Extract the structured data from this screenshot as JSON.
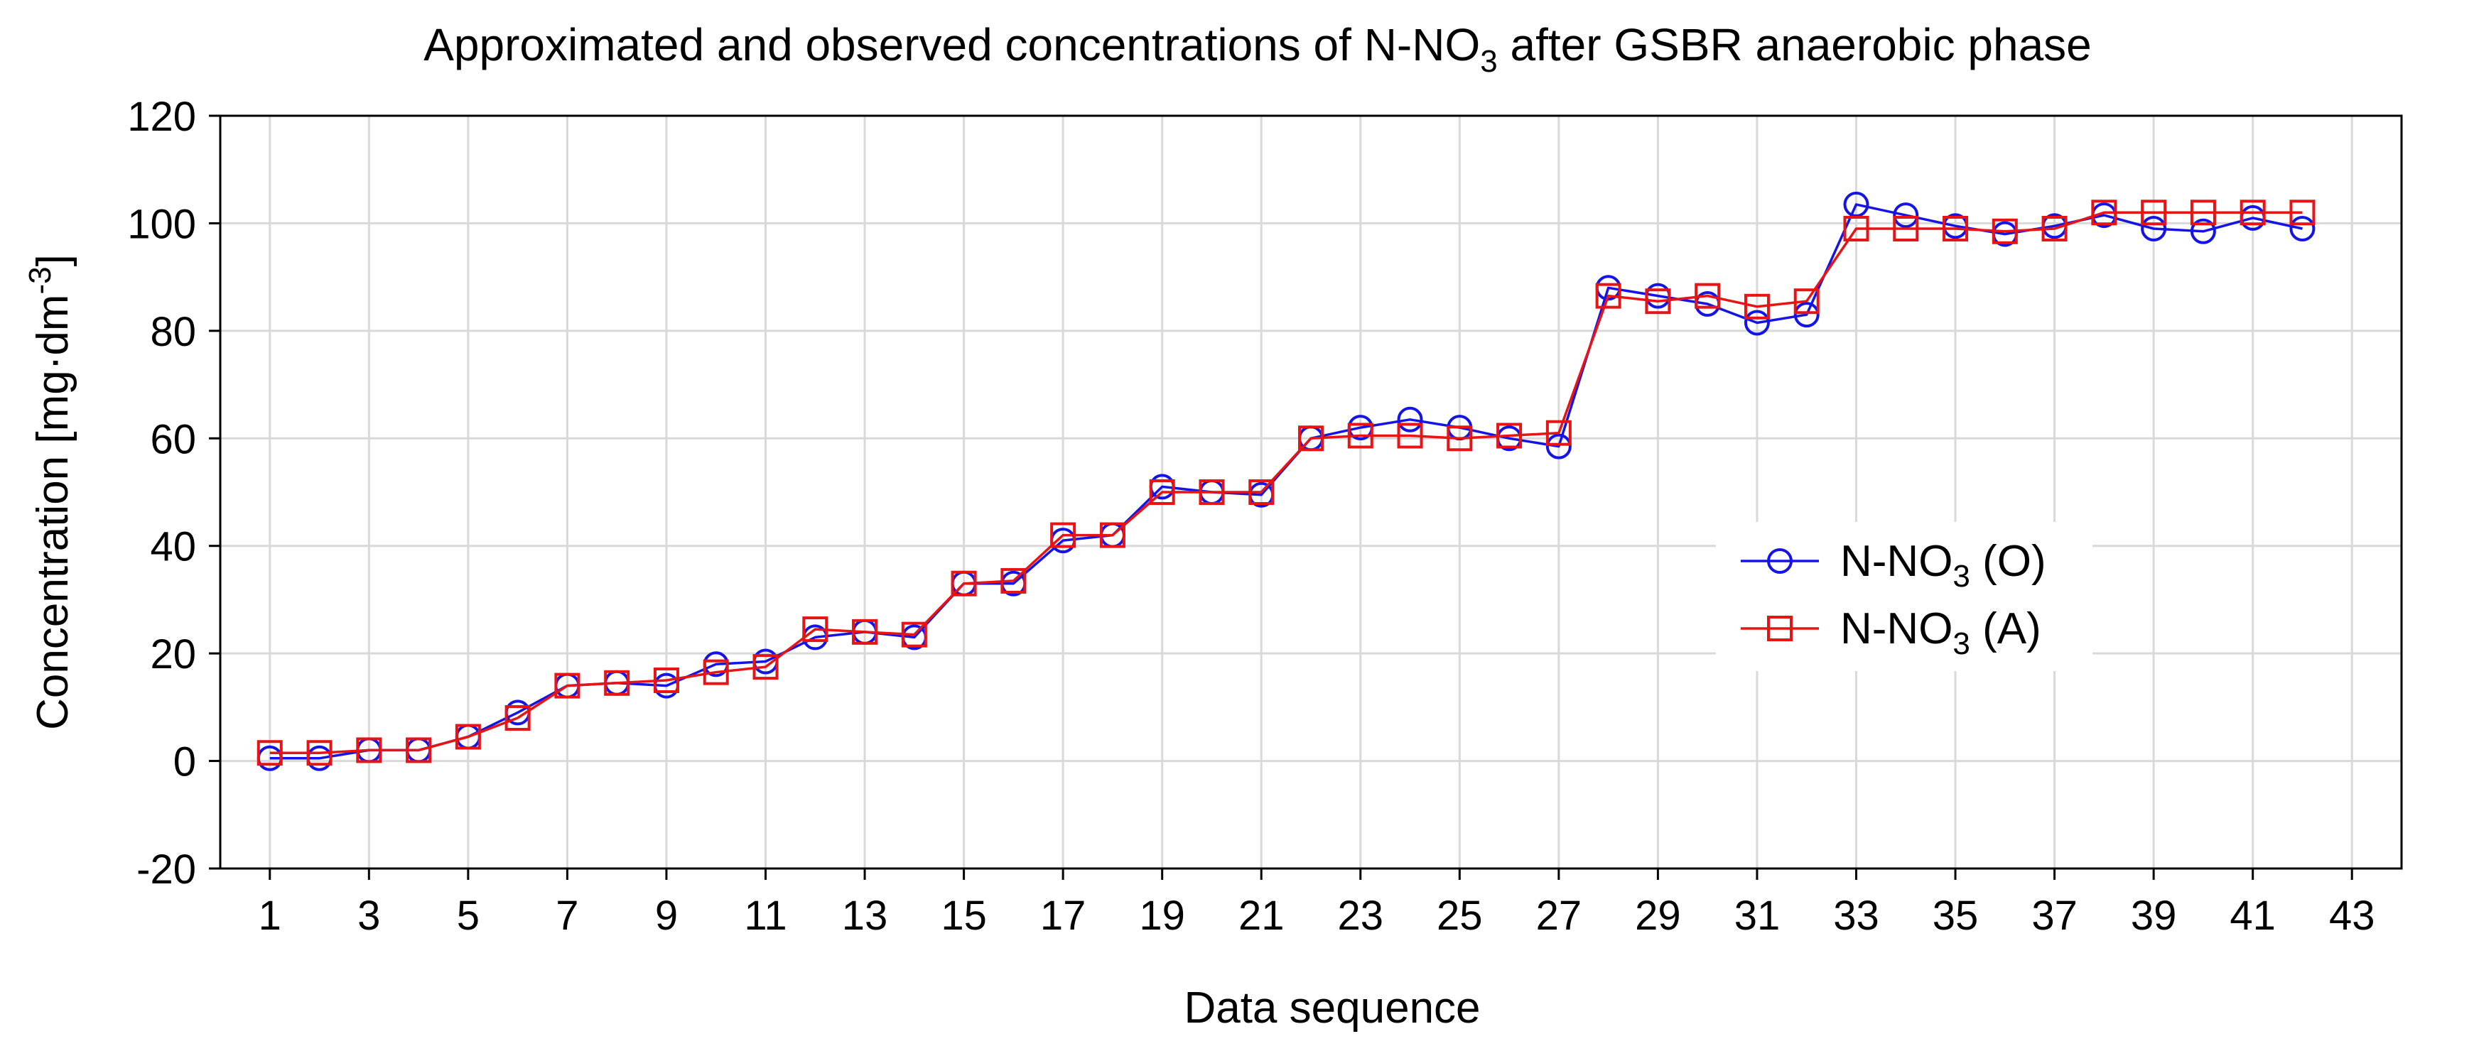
{
  "chart_data": {
    "type": "line",
    "title": {
      "prefix": "Approximated and observed concentrations of N-NO",
      "subscript": "3",
      "suffix": " after GSBR anaerobic phase"
    },
    "xlabel": "Data sequence",
    "ylabel": {
      "prefix": "Concentration [mg·dm",
      "superscript": "-3",
      "suffix": "]"
    },
    "xlim": [
      0,
      44
    ],
    "ylim": [
      -20,
      120
    ],
    "x_ticks": [
      1,
      3,
      5,
      7,
      9,
      11,
      13,
      15,
      17,
      19,
      21,
      23,
      25,
      27,
      29,
      31,
      33,
      35,
      37,
      39,
      41,
      43
    ],
    "y_ticks": [
      -20,
      0,
      20,
      40,
      60,
      80,
      100,
      120
    ],
    "grid": true,
    "legend_position": "center-right",
    "x": [
      1,
      2,
      3,
      4,
      5,
      6,
      7,
      8,
      9,
      10,
      11,
      12,
      13,
      14,
      15,
      16,
      17,
      18,
      19,
      20,
      21,
      22,
      23,
      24,
      25,
      26,
      27,
      28,
      29,
      30,
      31,
      32,
      33,
      34,
      35,
      36,
      37,
      38,
      39,
      40,
      41,
      42
    ],
    "series": [
      {
        "name": "N-NO3 (O)",
        "legend": {
          "prefix": "N-NO",
          "subscript": "3",
          "suffix": " (O)"
        },
        "color": "#1414e6",
        "marker": "circle",
        "values": [
          0.5,
          0.5,
          2,
          2,
          4.5,
          9,
          14,
          14.5,
          14,
          18,
          18.5,
          23,
          24,
          23,
          33,
          33,
          41,
          42,
          51,
          50,
          49.5,
          60,
          62,
          63.5,
          62,
          60,
          58.5,
          88,
          86.5,
          85,
          81.5,
          83,
          103.5,
          101.5,
          99.5,
          98,
          99.5,
          101.5,
          99,
          98.5,
          101,
          99
        ]
      },
      {
        "name": "N-NO3 (A)",
        "legend": {
          "prefix": "N-NO",
          "subscript": "3",
          "suffix": " (A)"
        },
        "color": "#e61414",
        "marker": "square",
        "values": [
          1.5,
          1.5,
          2,
          2,
          4.5,
          8,
          14,
          14.5,
          15,
          16.5,
          17.5,
          24.5,
          24,
          23.5,
          33,
          33.5,
          42,
          42,
          50,
          50,
          50,
          60,
          60.5,
          60.5,
          60,
          60.5,
          61,
          86.5,
          85.5,
          86.5,
          84.5,
          85.5,
          99,
          99,
          99,
          98.5,
          99,
          102,
          102,
          102,
          102,
          102
        ]
      }
    ]
  }
}
